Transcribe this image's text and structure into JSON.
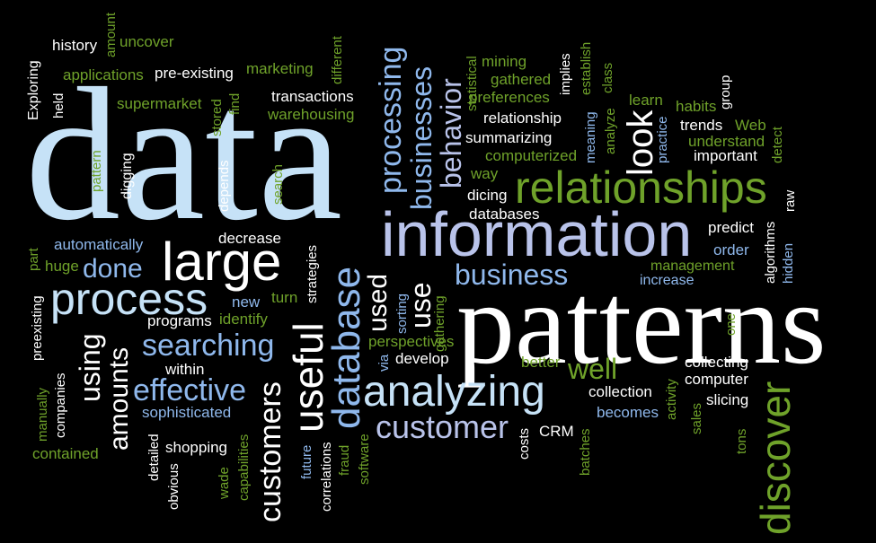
{
  "colors": {
    "background": "#000000",
    "white": "#ffffff",
    "pale_blue": "#c6e2f7",
    "mid_blue": "#8fb8ec",
    "green": "#6fa22a",
    "lavender": "#b9c3ea"
  },
  "words": [
    {
      "name": "data",
      "text": "data",
      "color": "pale_blue"
    },
    {
      "name": "patterns",
      "text": "patterns",
      "color": "white"
    },
    {
      "name": "information",
      "text": "information",
      "color": "lavender"
    },
    {
      "name": "relationships",
      "text": "relationships",
      "color": "green"
    },
    {
      "name": "large",
      "text": "large",
      "color": "white"
    },
    {
      "name": "process",
      "text": "process",
      "color": "pale_blue"
    },
    {
      "name": "analyzing",
      "text": "analyzing",
      "color": "pale_blue"
    },
    {
      "name": "customer",
      "text": "customer",
      "color": "lavender"
    },
    {
      "name": "business",
      "text": "business",
      "color": "mid_blue"
    },
    {
      "name": "searching",
      "text": "searching",
      "color": "mid_blue"
    },
    {
      "name": "effective",
      "text": "effective",
      "color": "mid_blue"
    },
    {
      "name": "done",
      "text": "done",
      "color": "mid_blue"
    },
    {
      "name": "well",
      "text": "well",
      "color": "green"
    },
    {
      "name": "discover",
      "text": "discover",
      "color": "green"
    },
    {
      "name": "database",
      "text": "database",
      "color": "mid_blue"
    },
    {
      "name": "useful",
      "text": "useful",
      "color": "white"
    },
    {
      "name": "customers",
      "text": "customers",
      "color": "white"
    },
    {
      "name": "processing",
      "text": "processing",
      "color": "mid_blue"
    },
    {
      "name": "businesses",
      "text": "businesses",
      "color": "mid_blue"
    },
    {
      "name": "behavior",
      "text": "behavior",
      "color": "lavender"
    },
    {
      "name": "look",
      "text": "look",
      "color": "white"
    },
    {
      "name": "used",
      "text": "used",
      "color": "white"
    },
    {
      "name": "use",
      "text": "use",
      "color": "white"
    },
    {
      "name": "using",
      "text": "using",
      "color": "white"
    },
    {
      "name": "amounts",
      "text": "amounts",
      "color": "white"
    },
    {
      "name": "history",
      "text": "history",
      "color": "white"
    },
    {
      "name": "amount",
      "text": "amount",
      "color": "green"
    },
    {
      "name": "uncover",
      "text": "uncover",
      "color": "green"
    },
    {
      "name": "different",
      "text": "different",
      "color": "green"
    },
    {
      "name": "applications",
      "text": "applications",
      "color": "green"
    },
    {
      "name": "pre-existing",
      "text": "pre-existing",
      "color": "white"
    },
    {
      "name": "marketing",
      "text": "marketing",
      "color": "green"
    },
    {
      "name": "exploring",
      "text": "Exploring",
      "color": "white"
    },
    {
      "name": "held",
      "text": "held",
      "color": "white"
    },
    {
      "name": "supermarket",
      "text": "supermarket",
      "color": "green"
    },
    {
      "name": "transactions",
      "text": "transactions",
      "color": "white"
    },
    {
      "name": "warehousing",
      "text": "warehousing",
      "color": "green"
    },
    {
      "name": "stored",
      "text": "stored",
      "color": "green"
    },
    {
      "name": "find",
      "text": "find",
      "color": "green"
    },
    {
      "name": "pattern",
      "text": "pattern",
      "color": "green"
    },
    {
      "name": "digging",
      "text": "digging",
      "color": "white"
    },
    {
      "name": "depends",
      "text": "depends",
      "color": "white"
    },
    {
      "name": "search",
      "text": "search",
      "color": "green"
    },
    {
      "name": "statistical",
      "text": "statistical",
      "color": "green"
    },
    {
      "name": "mining",
      "text": "mining",
      "color": "green"
    },
    {
      "name": "gathered",
      "text": "gathered",
      "color": "green"
    },
    {
      "name": "preferences",
      "text": "preferences",
      "color": "green"
    },
    {
      "name": "implies",
      "text": "implies",
      "color": "white"
    },
    {
      "name": "establish",
      "text": "establish",
      "color": "green"
    },
    {
      "name": "class",
      "text": "class",
      "color": "green"
    },
    {
      "name": "relationship",
      "text": "relationship",
      "color": "white"
    },
    {
      "name": "summarizing",
      "text": "summarizing",
      "color": "white"
    },
    {
      "name": "computerized",
      "text": "computerized",
      "color": "green"
    },
    {
      "name": "meaning",
      "text": "meaning",
      "color": "mid_blue"
    },
    {
      "name": "analyze",
      "text": "analyze",
      "color": "green"
    },
    {
      "name": "learn",
      "text": "learn",
      "color": "green"
    },
    {
      "name": "habits",
      "text": "habits",
      "color": "green"
    },
    {
      "name": "group",
      "text": "group",
      "color": "white"
    },
    {
      "name": "trends",
      "text": "trends",
      "color": "white"
    },
    {
      "name": "web",
      "text": "Web",
      "color": "green"
    },
    {
      "name": "practice",
      "text": "practice",
      "color": "mid_blue"
    },
    {
      "name": "understand",
      "text": "understand",
      "color": "green"
    },
    {
      "name": "important",
      "text": "important",
      "color": "white"
    },
    {
      "name": "detect",
      "text": "detect",
      "color": "green"
    },
    {
      "name": "way",
      "text": "way",
      "color": "green"
    },
    {
      "name": "dicing",
      "text": "dicing",
      "color": "white"
    },
    {
      "name": "databases",
      "text": "databases",
      "color": "white"
    },
    {
      "name": "raw",
      "text": "raw",
      "color": "white"
    },
    {
      "name": "predict",
      "text": "predict",
      "color": "white"
    },
    {
      "name": "algorithms",
      "text": "algorithms",
      "color": "white"
    },
    {
      "name": "order",
      "text": "order",
      "color": "mid_blue"
    },
    {
      "name": "management",
      "text": "management",
      "color": "green"
    },
    {
      "name": "hidden",
      "text": "hidden",
      "color": "mid_blue"
    },
    {
      "name": "increase",
      "text": "increase",
      "color": "mid_blue"
    },
    {
      "name": "automatically",
      "text": "automatically",
      "color": "mid_blue"
    },
    {
      "name": "decrease",
      "text": "decrease",
      "color": "white"
    },
    {
      "name": "part",
      "text": "part",
      "color": "green"
    },
    {
      "name": "huge",
      "text": "huge",
      "color": "green"
    },
    {
      "name": "strategies",
      "text": "strategies",
      "color": "white"
    },
    {
      "name": "preexisting",
      "text": "preexisting",
      "color": "white"
    },
    {
      "name": "new",
      "text": "new",
      "color": "mid_blue"
    },
    {
      "name": "turn",
      "text": "turn",
      "color": "green"
    },
    {
      "name": "programs",
      "text": "programs",
      "color": "white"
    },
    {
      "name": "identify",
      "text": "identify",
      "color": "green"
    },
    {
      "name": "sorting",
      "text": "sorting",
      "color": "mid_blue"
    },
    {
      "name": "gathering",
      "text": "gathering",
      "color": "green"
    },
    {
      "name": "perspectives",
      "text": "perspectives",
      "color": "green"
    },
    {
      "name": "via",
      "text": "via",
      "color": "mid_blue"
    },
    {
      "name": "develop",
      "text": "develop",
      "color": "white"
    },
    {
      "name": "better",
      "text": "better",
      "color": "green"
    },
    {
      "name": "one",
      "text": "one",
      "color": "green"
    },
    {
      "name": "collecting",
      "text": "collecting",
      "color": "white"
    },
    {
      "name": "computer",
      "text": "computer",
      "color": "white"
    },
    {
      "name": "activity",
      "text": "activity",
      "color": "green"
    },
    {
      "name": "collection",
      "text": "collection",
      "color": "white"
    },
    {
      "name": "slicing",
      "text": "slicing",
      "color": "white"
    },
    {
      "name": "becomes",
      "text": "becomes",
      "color": "mid_blue"
    },
    {
      "name": "sales",
      "text": "sales",
      "color": "green"
    },
    {
      "name": "tons",
      "text": "tons",
      "color": "green"
    },
    {
      "name": "within",
      "text": "within",
      "color": "white"
    },
    {
      "name": "sophisticated",
      "text": "sophisticated",
      "color": "mid_blue"
    },
    {
      "name": "companies",
      "text": "companies",
      "color": "white"
    },
    {
      "name": "manually",
      "text": "manually",
      "color": "green"
    },
    {
      "name": "contained",
      "text": "contained",
      "color": "green"
    },
    {
      "name": "detailed",
      "text": "detailed",
      "color": "white"
    },
    {
      "name": "obvious",
      "text": "obvious",
      "color": "white"
    },
    {
      "name": "shopping",
      "text": "shopping",
      "color": "white"
    },
    {
      "name": "wade",
      "text": "wade",
      "color": "green"
    },
    {
      "name": "capabilities",
      "text": "capabilities",
      "color": "green"
    },
    {
      "name": "future",
      "text": "future",
      "color": "mid_blue"
    },
    {
      "name": "correlations",
      "text": "correlations",
      "color": "white"
    },
    {
      "name": "fraud",
      "text": "fraud",
      "color": "green"
    },
    {
      "name": "software",
      "text": "software",
      "color": "green"
    },
    {
      "name": "costs",
      "text": "costs",
      "color": "white"
    },
    {
      "name": "crm",
      "text": "CRM",
      "color": "white"
    },
    {
      "name": "batches",
      "text": "batches",
      "color": "green"
    }
  ]
}
